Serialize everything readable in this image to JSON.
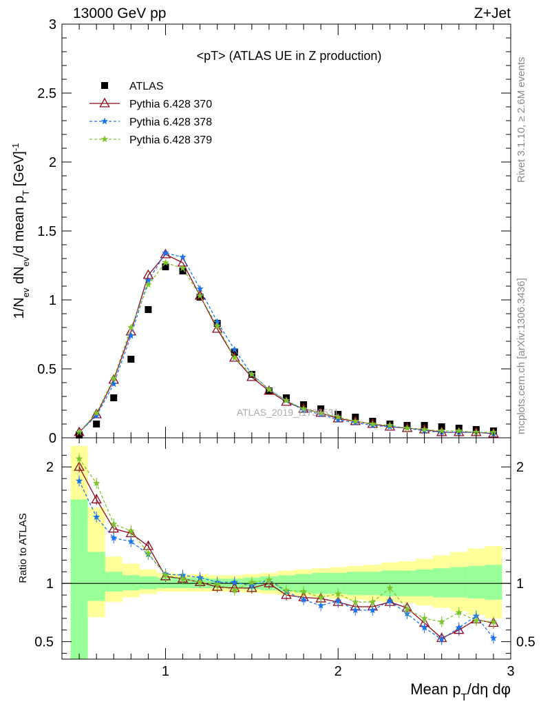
{
  "header": {
    "left": "13000 GeV pp",
    "right": "Z+Jet"
  },
  "side_texts": {
    "upper": "Rivet 3.1.10, ≥ 2.6M events",
    "lower": "mcplots.cern.ch [arXiv:1306.3436]"
  },
  "watermark": "ATLAS_2019_I1736531",
  "colors": {
    "atlas": "#000000",
    "p370": "#8b0a1e",
    "p378": "#1a73e8",
    "p379": "#7cc42a",
    "band_outer": "#ffff99",
    "band_inner": "#99ff99"
  },
  "chart_data": [
    {
      "type": "scatter",
      "title": "<pT> (ATLAS UE in Z production)",
      "ylabel": "1/N_ev dN_ev/d mean p_T [GeV]^-1",
      "xlabel": "",
      "xlim": [
        0.4,
        3.0
      ],
      "ylim": [
        0,
        3
      ],
      "yticks": [
        "0",
        "0.5",
        "1",
        "1.5",
        "2",
        "2.5",
        "3"
      ],
      "grid": false,
      "legend_position": "top-left",
      "x": [
        0.5,
        0.6,
        0.7,
        0.8,
        0.9,
        1.0,
        1.1,
        1.2,
        1.3,
        1.4,
        1.5,
        1.6,
        1.7,
        1.8,
        1.9,
        2.0,
        2.1,
        2.2,
        2.3,
        2.4,
        2.5,
        2.6,
        2.7,
        2.8,
        2.9
      ],
      "series": [
        {
          "name": "ATLAS",
          "marker": "square",
          "values": [
            0.02,
            0.1,
            0.29,
            0.57,
            0.93,
            1.24,
            1.21,
            1.02,
            0.83,
            0.62,
            0.46,
            0.34,
            0.29,
            0.24,
            0.21,
            0.17,
            0.15,
            0.12,
            0.1,
            0.09,
            0.09,
            0.08,
            0.07,
            0.06,
            0.05
          ]
        },
        {
          "name": "Pythia 6.428 370",
          "marker": "triangle",
          "values": [
            0.04,
            0.17,
            0.42,
            0.77,
            1.18,
            1.33,
            1.27,
            1.03,
            0.79,
            0.58,
            0.44,
            0.34,
            0.26,
            0.21,
            0.18,
            0.14,
            0.12,
            0.1,
            0.08,
            0.07,
            0.06,
            0.04,
            0.04,
            0.04,
            0.03
          ]
        },
        {
          "name": "Pythia 6.428 378",
          "marker": "star",
          "values": [
            0.04,
            0.16,
            0.39,
            0.74,
            1.14,
            1.34,
            1.31,
            1.08,
            0.84,
            0.64,
            0.46,
            0.35,
            0.27,
            0.2,
            0.17,
            0.13,
            0.11,
            0.09,
            0.08,
            0.07,
            0.05,
            0.04,
            0.04,
            0.04,
            0.03
          ]
        },
        {
          "name": "Pythia 6.428 379",
          "marker": "star",
          "values": [
            0.04,
            0.18,
            0.43,
            0.8,
            1.11,
            1.27,
            1.23,
            1.03,
            0.81,
            0.58,
            0.46,
            0.35,
            0.27,
            0.21,
            0.18,
            0.15,
            0.12,
            0.1,
            0.09,
            0.07,
            0.06,
            0.05,
            0.05,
            0.04,
            0.04
          ]
        }
      ]
    },
    {
      "type": "line",
      "ylabel": "Ratio to ATLAS",
      "xlabel": "Mean p_T/dη dφ",
      "xlim": [
        0.4,
        3.0
      ],
      "ylim": [
        0.35,
        2.25
      ],
      "yticks": [
        "0.5",
        "1",
        "2"
      ],
      "xticks": [
        "1",
        "2",
        "3"
      ],
      "x": [
        0.5,
        0.6,
        0.7,
        0.8,
        0.9,
        1.0,
        1.1,
        1.2,
        1.3,
        1.4,
        1.5,
        1.6,
        1.7,
        1.8,
        1.9,
        2.0,
        2.1,
        2.2,
        2.3,
        2.4,
        2.5,
        2.6,
        2.7,
        2.8,
        2.9
      ],
      "bands": {
        "inner": [
          [
            0.35,
            1.72
          ],
          [
            0.85,
            1.27
          ],
          [
            0.93,
            1.1
          ],
          [
            0.94,
            1.07
          ],
          [
            0.95,
            1.06
          ],
          [
            0.96,
            1.05
          ],
          [
            0.96,
            1.05
          ],
          [
            0.96,
            1.05
          ],
          [
            0.96,
            1.04
          ],
          [
            0.96,
            1.04
          ],
          [
            0.95,
            1.05
          ],
          [
            0.94,
            1.06
          ],
          [
            0.93,
            1.07
          ],
          [
            0.92,
            1.08
          ],
          [
            0.91,
            1.09
          ],
          [
            0.91,
            1.09
          ],
          [
            0.9,
            1.1
          ],
          [
            0.9,
            1.1
          ],
          [
            0.89,
            1.11
          ],
          [
            0.89,
            1.11
          ],
          [
            0.89,
            1.12
          ],
          [
            0.88,
            1.13
          ],
          [
            0.88,
            1.14
          ],
          [
            0.87,
            1.15
          ],
          [
            0.86,
            1.16
          ]
        ],
        "outer": [
          [
            0.35,
            2.18
          ],
          [
            0.71,
            1.65
          ],
          [
            0.84,
            1.23
          ],
          [
            0.88,
            1.17
          ],
          [
            0.91,
            1.12
          ],
          [
            0.93,
            1.09
          ],
          [
            0.93,
            1.08
          ],
          [
            0.93,
            1.08
          ],
          [
            0.93,
            1.07
          ],
          [
            0.93,
            1.07
          ],
          [
            0.92,
            1.08
          ],
          [
            0.91,
            1.09
          ],
          [
            0.9,
            1.11
          ],
          [
            0.89,
            1.12
          ],
          [
            0.88,
            1.13
          ],
          [
            0.87,
            1.14
          ],
          [
            0.86,
            1.15
          ],
          [
            0.85,
            1.16
          ],
          [
            0.84,
            1.18
          ],
          [
            0.83,
            1.19
          ],
          [
            0.81,
            1.21
          ],
          [
            0.79,
            1.24
          ],
          [
            0.76,
            1.27
          ],
          [
            0.73,
            1.3
          ],
          [
            0.7,
            1.32
          ]
        ]
      },
      "series": [
        {
          "name": "Pythia 6.428 370",
          "values": [
            2.0,
            1.72,
            1.47,
            1.43,
            1.32,
            1.06,
            1.04,
            1.01,
            0.97,
            0.96,
            0.96,
            1.0,
            0.9,
            0.88,
            0.87,
            0.84,
            0.8,
            0.8,
            0.84,
            0.79,
            0.66,
            0.53,
            0.6,
            0.69,
            0.66
          ]
        },
        {
          "name": "Pythia 6.428 378",
          "values": [
            1.88,
            1.57,
            1.39,
            1.36,
            1.25,
            1.08,
            1.07,
            1.05,
            1.01,
            1.01,
            0.98,
            1.03,
            0.93,
            0.86,
            0.81,
            0.85,
            0.77,
            0.77,
            0.85,
            0.74,
            0.62,
            0.52,
            0.62,
            0.72,
            0.53
          ]
        },
        {
          "name": "Pythia 6.428 379",
          "values": [
            2.07,
            1.86,
            1.51,
            1.45,
            1.26,
            1.07,
            1.04,
            1.01,
            0.99,
            0.94,
            1.01,
            1.03,
            0.94,
            0.93,
            0.88,
            0.91,
            0.84,
            0.84,
            0.96,
            0.78,
            0.7,
            0.67,
            0.75,
            0.68,
            0.67
          ]
        }
      ]
    }
  ]
}
